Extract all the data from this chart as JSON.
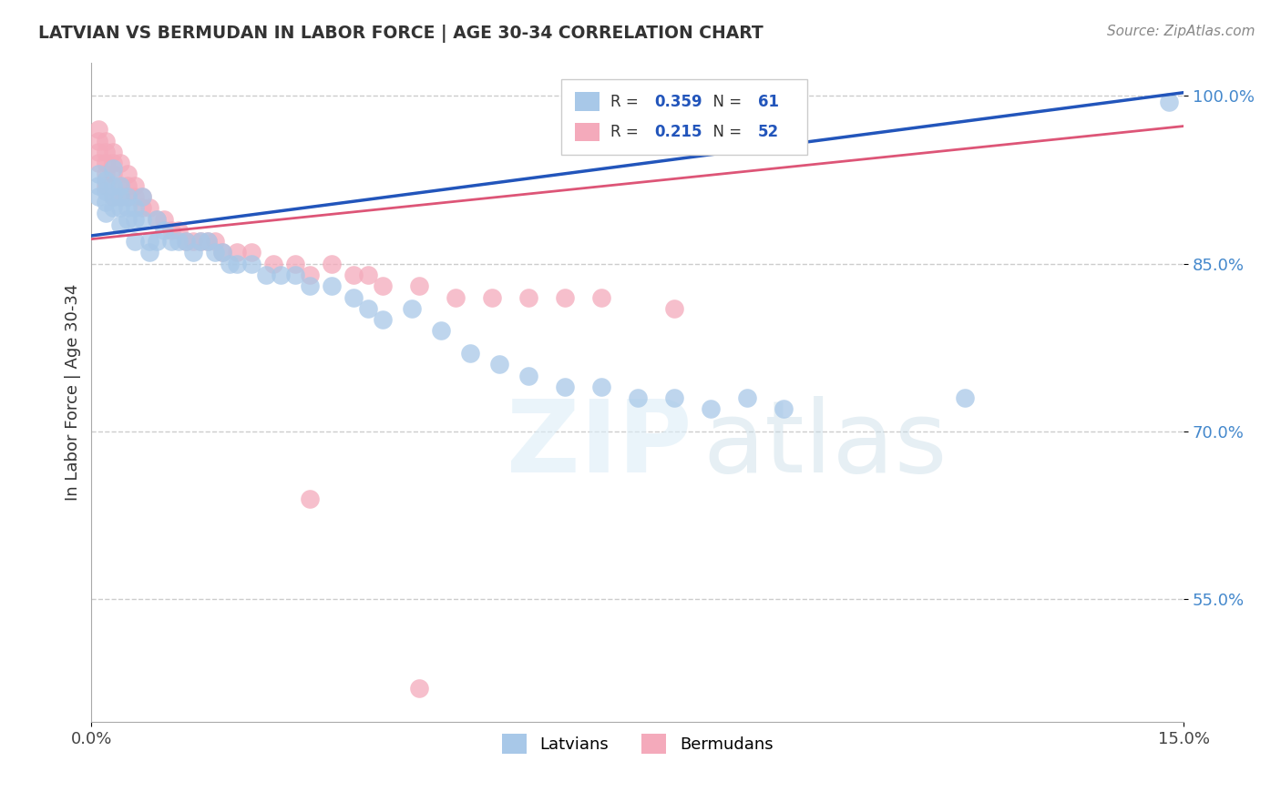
{
  "title": "LATVIAN VS BERMUDAN IN LABOR FORCE | AGE 30-34 CORRELATION CHART",
  "source": "Source: ZipAtlas.com",
  "ylabel_label": "In Labor Force | Age 30-34",
  "ytick_values": [
    0.55,
    0.7,
    0.85,
    1.0
  ],
  "xmin": 0.0,
  "xmax": 0.15,
  "ymin": 0.44,
  "ymax": 1.03,
  "latvian_color": "#a8c8e8",
  "bermudan_color": "#f4aabb",
  "latvian_line_color": "#2255bb",
  "bermudan_line_color": "#dd5577",
  "R_latvian": 0.359,
  "N_latvian": 61,
  "R_bermudan": 0.215,
  "N_bermudan": 52,
  "latvian_x": [
    0.001,
    0.001,
    0.001,
    0.002,
    0.002,
    0.002,
    0.002,
    0.003,
    0.003,
    0.003,
    0.003,
    0.004,
    0.004,
    0.004,
    0.004,
    0.005,
    0.005,
    0.005,
    0.006,
    0.006,
    0.006,
    0.007,
    0.007,
    0.008,
    0.008,
    0.009,
    0.009,
    0.01,
    0.011,
    0.012,
    0.013,
    0.014,
    0.015,
    0.016,
    0.017,
    0.018,
    0.019,
    0.02,
    0.022,
    0.024,
    0.026,
    0.028,
    0.03,
    0.033,
    0.036,
    0.038,
    0.04,
    0.044,
    0.048,
    0.052,
    0.056,
    0.06,
    0.065,
    0.07,
    0.075,
    0.08,
    0.085,
    0.09,
    0.095,
    0.12,
    0.148
  ],
  "latvian_y": [
    0.93,
    0.92,
    0.91,
    0.925,
    0.915,
    0.905,
    0.895,
    0.935,
    0.92,
    0.91,
    0.9,
    0.92,
    0.91,
    0.9,
    0.885,
    0.91,
    0.9,
    0.89,
    0.9,
    0.89,
    0.87,
    0.91,
    0.89,
    0.87,
    0.86,
    0.89,
    0.87,
    0.88,
    0.87,
    0.87,
    0.87,
    0.86,
    0.87,
    0.87,
    0.86,
    0.86,
    0.85,
    0.85,
    0.85,
    0.84,
    0.84,
    0.84,
    0.83,
    0.83,
    0.82,
    0.81,
    0.8,
    0.81,
    0.79,
    0.77,
    0.76,
    0.75,
    0.74,
    0.74,
    0.73,
    0.73,
    0.72,
    0.73,
    0.72,
    0.73,
    0.995
  ],
  "bermudan_x": [
    0.001,
    0.001,
    0.001,
    0.001,
    0.002,
    0.002,
    0.002,
    0.002,
    0.002,
    0.003,
    0.003,
    0.003,
    0.003,
    0.004,
    0.004,
    0.004,
    0.005,
    0.005,
    0.005,
    0.006,
    0.006,
    0.007,
    0.007,
    0.008,
    0.009,
    0.01,
    0.011,
    0.012,
    0.013,
    0.014,
    0.015,
    0.016,
    0.017,
    0.018,
    0.02,
    0.022,
    0.025,
    0.028,
    0.03,
    0.033,
    0.036,
    0.038,
    0.04,
    0.045,
    0.05,
    0.055,
    0.06,
    0.065,
    0.07,
    0.08,
    0.03,
    0.045
  ],
  "bermudan_y": [
    0.97,
    0.96,
    0.95,
    0.94,
    0.96,
    0.95,
    0.94,
    0.93,
    0.92,
    0.95,
    0.94,
    0.93,
    0.91,
    0.94,
    0.92,
    0.91,
    0.93,
    0.92,
    0.91,
    0.92,
    0.91,
    0.91,
    0.9,
    0.9,
    0.89,
    0.89,
    0.88,
    0.88,
    0.87,
    0.87,
    0.87,
    0.87,
    0.87,
    0.86,
    0.86,
    0.86,
    0.85,
    0.85,
    0.84,
    0.85,
    0.84,
    0.84,
    0.83,
    0.83,
    0.82,
    0.82,
    0.82,
    0.82,
    0.82,
    0.81,
    0.64,
    0.47
  ]
}
